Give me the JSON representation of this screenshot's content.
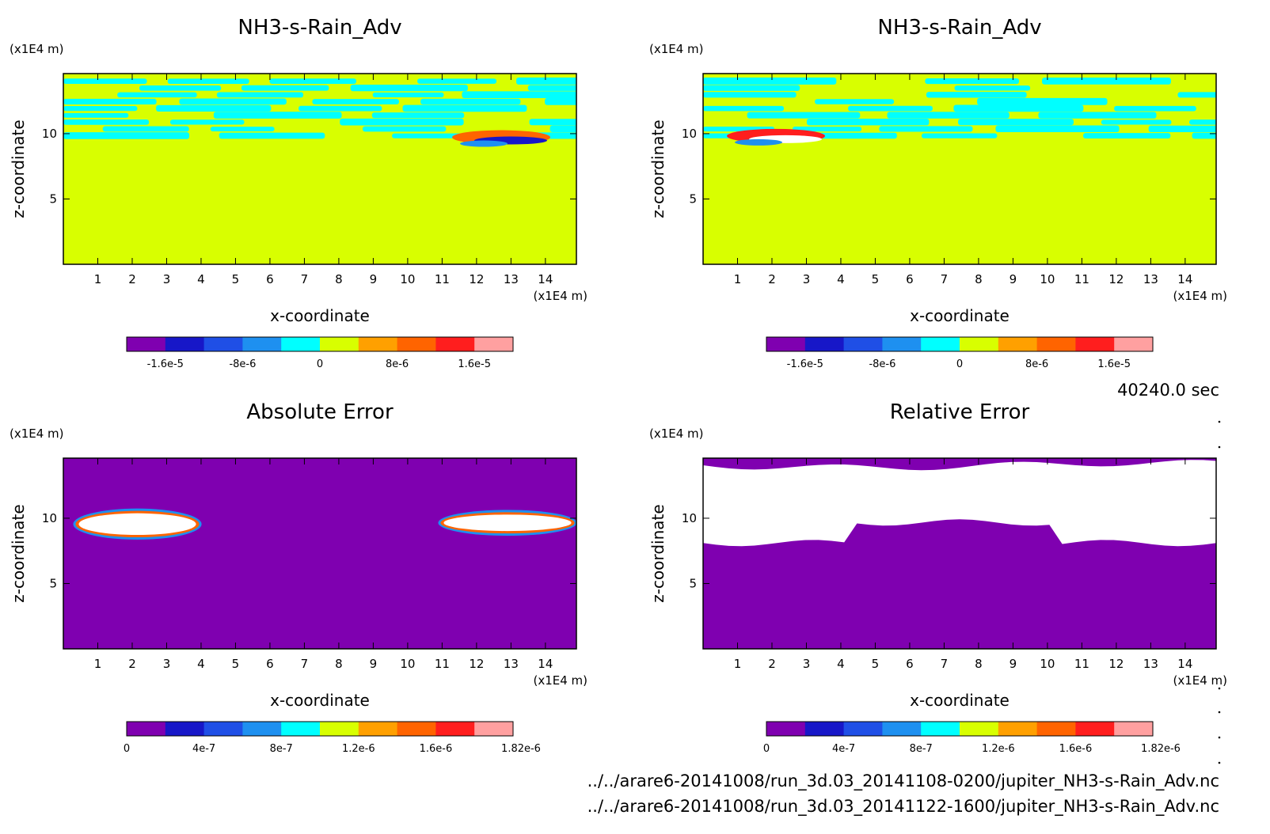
{
  "chart_data": [
    {
      "type": "heatmap",
      "title": "NH3-s-Rain_Adv",
      "xlabel": "x-coordinate",
      "ylabel": "z-coordinate",
      "xunit": "(x1E4 m)",
      "yunit": "(x1E4 m)",
      "xlim": [
        0,
        14.9
      ],
      "ylim": [
        0,
        14.6
      ],
      "xticks": [
        "1",
        "2",
        "3",
        "4",
        "5",
        "6",
        "7",
        "8",
        "9",
        "10",
        "11",
        "12",
        "13",
        "14"
      ],
      "yticks": [
        "5",
        "10"
      ],
      "colorbar": {
        "colors": [
          "#7f00b0",
          "#1717c8",
          "#1f4fe6",
          "#1e90f0",
          "#00ffff",
          "#d8ff00",
          "#ffa000",
          "#ff6400",
          "#ff1e1e",
          "#ffa0a0"
        ],
        "tick_labels": [
          "-1.6e-5",
          "-8e-6",
          "0",
          "8e-6",
          "1.6e-5"
        ],
        "range": [
          -2e-05,
          2e-05
        ]
      },
      "background_color": "#d8ff00",
      "features": [
        {
          "kind": "cloud-band",
          "z_range": [
            9.5,
            14.2
          ],
          "value": "-4e-6",
          "color": "#00ffff"
        },
        {
          "kind": "dipole",
          "center_x": 12.9,
          "center_z": 9.6,
          "positive_color": "#ff6400",
          "negative_color": "#1717c8"
        }
      ]
    },
    {
      "type": "heatmap",
      "title": "NH3-s-Rain_Adv",
      "xlabel": "x-coordinate",
      "ylabel": "z-coordinate",
      "xunit": "(x1E4 m)",
      "yunit": "(x1E4 m)",
      "xlim": [
        0,
        14.9
      ],
      "ylim": [
        0,
        14.6
      ],
      "xticks": [
        "1",
        "2",
        "3",
        "4",
        "5",
        "6",
        "7",
        "8",
        "9",
        "10",
        "11",
        "12",
        "13",
        "14"
      ],
      "yticks": [
        "5",
        "10"
      ],
      "colorbar": {
        "colors": [
          "#7f00b0",
          "#1717c8",
          "#1f4fe6",
          "#1e90f0",
          "#00ffff",
          "#d8ff00",
          "#ffa000",
          "#ff6400",
          "#ff1e1e",
          "#ffa0a0"
        ],
        "tick_labels": [
          "-1.6e-5",
          "-8e-6",
          "0",
          "8e-6",
          "1.6e-5"
        ],
        "range": [
          -2e-05,
          2e-05
        ]
      },
      "background_color": "#d8ff00",
      "features": [
        {
          "kind": "cloud-band",
          "z_range": [
            9.5,
            14.2
          ],
          "value": "-4e-6",
          "color": "#00ffff"
        },
        {
          "kind": "dipole",
          "center_x": 2.3,
          "center_z": 9.7,
          "positive_color": "#ff1e1e",
          "negative_color": "#ffffff"
        }
      ]
    },
    {
      "type": "heatmap",
      "title": "Absolute Error",
      "xlabel": "x-coordinate",
      "ylabel": "z-coordinate",
      "xunit": "(x1E4 m)",
      "yunit": "(x1E4 m)",
      "xlim": [
        0,
        14.9
      ],
      "ylim": [
        0,
        14.6
      ],
      "xticks": [
        "1",
        "2",
        "3",
        "4",
        "5",
        "6",
        "7",
        "8",
        "9",
        "10",
        "11",
        "12",
        "13",
        "14"
      ],
      "yticks": [
        "5",
        "10"
      ],
      "colorbar": {
        "colors": [
          "#7f00b0",
          "#1717c8",
          "#1f4fe6",
          "#1e90f0",
          "#00ffff",
          "#d8ff00",
          "#ffa000",
          "#ff6400",
          "#ff1e1e",
          "#ffa0a0"
        ],
        "tick_labels": [
          "0",
          "4e-7",
          "8e-7",
          "1.2e-6",
          "1.6e-6",
          "1.82e-6"
        ],
        "range": [
          0,
          1.82e-06
        ]
      },
      "background_color": "#7f00b0",
      "features": [
        {
          "kind": "error-blob",
          "x_range": [
            0.4,
            3.9
          ],
          "z_range": [
            8.6,
            10.5
          ],
          "color": "#ffffff"
        },
        {
          "kind": "error-blob",
          "x_range": [
            11.0,
            14.8
          ],
          "z_range": [
            8.9,
            10.4
          ],
          "color": "#ffffff"
        }
      ]
    },
    {
      "type": "heatmap",
      "title": "Relative Error",
      "xlabel": "x-coordinate",
      "ylabel": "z-coordinate",
      "xunit": "(x1E4 m)",
      "yunit": "(x1E4 m)",
      "xlim": [
        0,
        14.9
      ],
      "ylim": [
        0,
        14.6
      ],
      "xticks": [
        "1",
        "2",
        "3",
        "4",
        "5",
        "6",
        "7",
        "8",
        "9",
        "10",
        "11",
        "12",
        "13",
        "14"
      ],
      "yticks": [
        "5",
        "10"
      ],
      "colorbar": {
        "colors": [
          "#7f00b0",
          "#1717c8",
          "#1f4fe6",
          "#1e90f0",
          "#00ffff",
          "#d8ff00",
          "#ffa000",
          "#ff6400",
          "#ff1e1e",
          "#ffa0a0"
        ],
        "tick_labels": [
          "0",
          "4e-7",
          "8e-7",
          "1.2e-6",
          "1.6e-6",
          "1.82e-6"
        ],
        "range": [
          0,
          1.82e-06
        ]
      },
      "background_color": "#7f00b0",
      "features": [
        {
          "kind": "saturated-region",
          "z_range": [
            8.1,
            14.3
          ],
          "color": "#ffffff"
        }
      ]
    }
  ],
  "time_label": "40240.0 sec",
  "footer": {
    "file1": "../../arare6-20141008/run_3d.03_20141108-0200/jupiter_NH3-s-Rain_Adv.nc",
    "file2": "../../arare6-20141008/run_3d.03_20141122-1600/jupiter_NH3-s-Rain_Adv.nc"
  }
}
